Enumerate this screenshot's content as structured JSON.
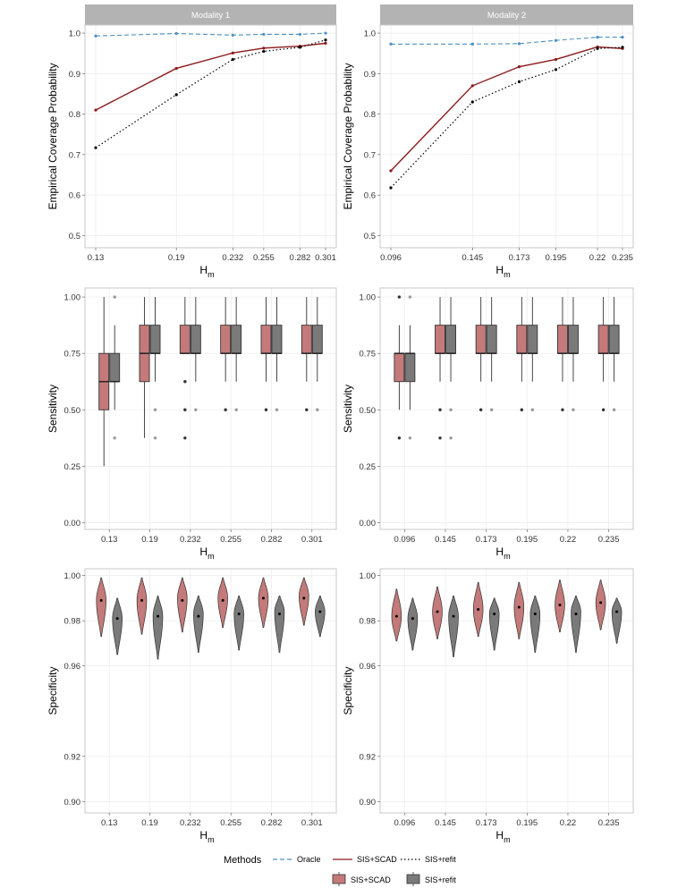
{
  "legend": {
    "title": "Methods",
    "line_items": [
      {
        "label": "Oracle",
        "style": "dashed",
        "color": "#4a90c2"
      },
      {
        "label": "SIS+SCAD",
        "style": "solid",
        "color": "#8b1a1a"
      },
      {
        "label": "SIS+refit",
        "style": "dotted",
        "color": "#000000"
      }
    ],
    "fill_items": [
      {
        "label": "SIS+SCAD",
        "color": "#c47a7a"
      },
      {
        "label": "SIS+refit",
        "color": "#7a7a7a"
      }
    ]
  },
  "colors": {
    "oracle": "#4a90c2",
    "scad_line": "#8b1a1a",
    "refit_line": "#000000",
    "scad_fill": "#c47a7a",
    "refit_fill": "#7a7a7a",
    "strip": "#b3b3b3",
    "panel_border": "#c8c8c8",
    "grid": "#e8e8e8"
  },
  "chart_data": [
    {
      "type": "line",
      "id": "coverage-m1",
      "facet": "Modality 1",
      "xlabel": "H",
      "xlabel_sub": "m",
      "ylabel": "Empirical Coverage Probability",
      "x": [
        0.13,
        0.19,
        0.232,
        0.255,
        0.282,
        0.301
      ],
      "x_tick_labels": [
        "0.13",
        "0.19",
        "0.232",
        "0.255",
        "0.282",
        "0.301"
      ],
      "ylim": [
        0.47,
        1.02
      ],
      "yticks": [
        0.5,
        0.6,
        0.7,
        0.8,
        0.9,
        1.0
      ],
      "ytick_labels": [
        "0.5",
        "0.6",
        "0.7",
        "0.8",
        "0.9",
        "1.0"
      ],
      "series": [
        {
          "name": "Oracle",
          "values": [
            0.993,
            0.999,
            0.995,
            0.997,
            0.997,
            1.0
          ]
        },
        {
          "name": "SIS+SCAD",
          "values": [
            0.81,
            0.913,
            0.951,
            0.963,
            0.968,
            0.975
          ]
        },
        {
          "name": "SIS+refit",
          "values": [
            0.717,
            0.848,
            0.935,
            0.955,
            0.965,
            0.983
          ]
        }
      ]
    },
    {
      "type": "line",
      "id": "coverage-m2",
      "facet": "Modality 2",
      "xlabel": "H",
      "xlabel_sub": "m",
      "ylabel": "Empirical Coverage Probability",
      "x": [
        0.096,
        0.145,
        0.173,
        0.195,
        0.22,
        0.235
      ],
      "x_tick_labels": [
        "0.096",
        "0.145",
        "0.173",
        "0.195",
        "0.22",
        "0.235"
      ],
      "ylim": [
        0.47,
        1.02
      ],
      "yticks": [
        0.5,
        0.6,
        0.7,
        0.8,
        0.9,
        1.0
      ],
      "ytick_labels": [
        "0.5",
        "0.6",
        "0.7",
        "0.8",
        "0.9",
        "1.0"
      ],
      "series": [
        {
          "name": "Oracle",
          "values": [
            0.973,
            0.973,
            0.974,
            0.982,
            0.99,
            0.99
          ]
        },
        {
          "name": "SIS+SCAD",
          "values": [
            0.66,
            0.87,
            0.917,
            0.935,
            0.966,
            0.962
          ]
        },
        {
          "name": "SIS+refit",
          "values": [
            0.618,
            0.83,
            0.88,
            0.91,
            0.962,
            0.965
          ]
        }
      ]
    },
    {
      "type": "boxplot",
      "id": "sensitivity-m1",
      "xlabel": "H",
      "xlabel_sub": "m",
      "ylabel": "Sensitivity",
      "categories": [
        "0.13",
        "0.19",
        "0.232",
        "0.255",
        "0.282",
        "0.301"
      ],
      "ylim": [
        -0.03,
        1.04
      ],
      "yticks": [
        0,
        0.25,
        0.5,
        0.75,
        1.0
      ],
      "ytick_labels": [
        "0.00",
        "0.25",
        "0.50",
        "0.75",
        "1.00"
      ],
      "series": [
        {
          "name": "SIS+SCAD",
          "boxes": [
            {
              "q1": 0.5,
              "med": 0.625,
              "q3": 0.75,
              "lo": 0.25,
              "hi": 1.0,
              "outliers": []
            },
            {
              "q1": 0.625,
              "med": 0.75,
              "q3": 0.875,
              "lo": 0.375,
              "hi": 1.0,
              "outliers": []
            },
            {
              "q1": 0.75,
              "med": 0.75,
              "q3": 0.875,
              "lo": 0.75,
              "hi": 1.0,
              "outliers": [
                0.625,
                0.5,
                0.375
              ]
            },
            {
              "q1": 0.75,
              "med": 0.75,
              "q3": 0.875,
              "lo": 0.625,
              "hi": 1.0,
              "outliers": [
                0.5
              ]
            },
            {
              "q1": 0.75,
              "med": 0.75,
              "q3": 0.875,
              "lo": 0.625,
              "hi": 1.0,
              "outliers": [
                0.5
              ]
            },
            {
              "q1": 0.75,
              "med": 0.75,
              "q3": 0.875,
              "lo": 0.625,
              "hi": 1.0,
              "outliers": [
                0.5
              ]
            }
          ]
        },
        {
          "name": "SIS+refit",
          "boxes": [
            {
              "q1": 0.625,
              "med": 0.625,
              "q3": 0.75,
              "lo": 0.5,
              "hi": 0.875,
              "outliers": [
                1.0,
                0.375
              ]
            },
            {
              "q1": 0.75,
              "med": 0.75,
              "q3": 0.875,
              "lo": 0.625,
              "hi": 1.0,
              "outliers": [
                0.5,
                0.375
              ]
            },
            {
              "q1": 0.75,
              "med": 0.75,
              "q3": 0.875,
              "lo": 0.625,
              "hi": 1.0,
              "outliers": [
                0.5
              ]
            },
            {
              "q1": 0.75,
              "med": 0.75,
              "q3": 0.875,
              "lo": 0.625,
              "hi": 1.0,
              "outliers": [
                0.5
              ]
            },
            {
              "q1": 0.75,
              "med": 0.75,
              "q3": 0.875,
              "lo": 0.625,
              "hi": 1.0,
              "outliers": [
                0.5
              ]
            },
            {
              "q1": 0.75,
              "med": 0.75,
              "q3": 0.875,
              "lo": 0.625,
              "hi": 1.0,
              "outliers": [
                0.5
              ]
            }
          ]
        }
      ]
    },
    {
      "type": "boxplot",
      "id": "sensitivity-m2",
      "xlabel": "H",
      "xlabel_sub": "m",
      "ylabel": "Sensitivity",
      "categories": [
        "0.096",
        "0.145",
        "0.173",
        "0.195",
        "0.22",
        "0.235"
      ],
      "ylim": [
        -0.03,
        1.04
      ],
      "yticks": [
        0,
        0.25,
        0.5,
        0.75,
        1.0
      ],
      "ytick_labels": [
        "0.00",
        "0.25",
        "0.50",
        "0.75",
        "1.00"
      ],
      "series": [
        {
          "name": "SIS+SCAD",
          "boxes": [
            {
              "q1": 0.625,
              "med": 0.75,
              "q3": 0.75,
              "lo": 0.5,
              "hi": 0.875,
              "outliers": [
                1.0,
                0.375
              ]
            },
            {
              "q1": 0.75,
              "med": 0.75,
              "q3": 0.875,
              "lo": 0.625,
              "hi": 1.0,
              "outliers": [
                0.5,
                0.375
              ]
            },
            {
              "q1": 0.75,
              "med": 0.75,
              "q3": 0.875,
              "lo": 0.625,
              "hi": 1.0,
              "outliers": [
                0.5
              ]
            },
            {
              "q1": 0.75,
              "med": 0.75,
              "q3": 0.875,
              "lo": 0.625,
              "hi": 1.0,
              "outliers": [
                0.5
              ]
            },
            {
              "q1": 0.75,
              "med": 0.75,
              "q3": 0.875,
              "lo": 0.625,
              "hi": 1.0,
              "outliers": [
                0.5
              ]
            },
            {
              "q1": 0.75,
              "med": 0.75,
              "q3": 0.875,
              "lo": 0.625,
              "hi": 1.0,
              "outliers": [
                0.5
              ]
            }
          ]
        },
        {
          "name": "SIS+refit",
          "boxes": [
            {
              "q1": 0.625,
              "med": 0.75,
              "q3": 0.75,
              "lo": 0.5,
              "hi": 0.875,
              "outliers": [
                1.0,
                0.375
              ]
            },
            {
              "q1": 0.75,
              "med": 0.75,
              "q3": 0.875,
              "lo": 0.625,
              "hi": 1.0,
              "outliers": [
                0.5,
                0.375
              ]
            },
            {
              "q1": 0.75,
              "med": 0.75,
              "q3": 0.875,
              "lo": 0.625,
              "hi": 1.0,
              "outliers": [
                0.5
              ]
            },
            {
              "q1": 0.75,
              "med": 0.75,
              "q3": 0.875,
              "lo": 0.625,
              "hi": 1.0,
              "outliers": [
                0.5
              ]
            },
            {
              "q1": 0.75,
              "med": 0.75,
              "q3": 0.875,
              "lo": 0.625,
              "hi": 1.0,
              "outliers": [
                0.5
              ]
            },
            {
              "q1": 0.75,
              "med": 0.75,
              "q3": 0.875,
              "lo": 0.625,
              "hi": 1.0,
              "outliers": [
                0.5
              ]
            }
          ]
        }
      ]
    },
    {
      "type": "violin",
      "id": "specificity-m1",
      "xlabel": "H",
      "xlabel_sub": "m",
      "ylabel": "Specificity",
      "categories": [
        "0.13",
        "0.19",
        "0.232",
        "0.255",
        "0.282",
        "0.301"
      ],
      "ylim": [
        0.895,
        1.003
      ],
      "yticks": [
        0.9,
        0.92,
        0.96,
        0.98,
        1.0
      ],
      "ytick_labels": [
        "0.90",
        "0.92",
        "0.96",
        "0.98",
        "1.00"
      ],
      "series": [
        {
          "name": "SIS+SCAD",
          "violins": [
            {
              "min": 0.973,
              "max": 0.999,
              "mode": 0.989,
              "mean": 0.989
            },
            {
              "min": 0.974,
              "max": 0.999,
              "mode": 0.989,
              "mean": 0.989
            },
            {
              "min": 0.975,
              "max": 0.999,
              "mode": 0.99,
              "mean": 0.989
            },
            {
              "min": 0.977,
              "max": 0.999,
              "mode": 0.99,
              "mean": 0.989
            },
            {
              "min": 0.977,
              "max": 0.999,
              "mode": 0.99,
              "mean": 0.99
            },
            {
              "min": 0.978,
              "max": 0.999,
              "mode": 0.991,
              "mean": 0.99
            }
          ]
        },
        {
          "name": "SIS+refit",
          "violins": [
            {
              "min": 0.965,
              "max": 0.99,
              "mode": 0.981,
              "mean": 0.981
            },
            {
              "min": 0.963,
              "max": 0.991,
              "mode": 0.982,
              "mean": 0.982
            },
            {
              "min": 0.966,
              "max": 0.991,
              "mode": 0.983,
              "mean": 0.982
            },
            {
              "min": 0.967,
              "max": 0.991,
              "mode": 0.983,
              "mean": 0.983
            },
            {
              "min": 0.966,
              "max": 0.991,
              "mode": 0.984,
              "mean": 0.983
            },
            {
              "min": 0.973,
              "max": 0.991,
              "mode": 0.984,
              "mean": 0.984
            }
          ]
        }
      ]
    },
    {
      "type": "violin",
      "id": "specificity-m2",
      "xlabel": "H",
      "xlabel_sub": "m",
      "ylabel": "Specificity",
      "categories": [
        "0.096",
        "0.145",
        "0.173",
        "0.195",
        "0.22",
        "0.235"
      ],
      "ylim": [
        0.895,
        1.003
      ],
      "yticks": [
        0.9,
        0.92,
        0.96,
        0.98,
        1.0
      ],
      "ytick_labels": [
        "0.90",
        "0.92",
        "0.96",
        "0.98",
        "1.00"
      ],
      "series": [
        {
          "name": "SIS+SCAD",
          "violins": [
            {
              "min": 0.971,
              "max": 0.994,
              "mode": 0.982,
              "mean": 0.982
            },
            {
              "min": 0.972,
              "max": 0.995,
              "mode": 0.984,
              "mean": 0.984
            },
            {
              "min": 0.973,
              "max": 0.997,
              "mode": 0.985,
              "mean": 0.985
            },
            {
              "min": 0.972,
              "max": 0.997,
              "mode": 0.986,
              "mean": 0.986
            },
            {
              "min": 0.975,
              "max": 0.998,
              "mode": 0.987,
              "mean": 0.987
            },
            {
              "min": 0.976,
              "max": 0.998,
              "mode": 0.988,
              "mean": 0.988
            }
          ]
        },
        {
          "name": "SIS+refit",
          "violins": [
            {
              "min": 0.967,
              "max": 0.99,
              "mode": 0.981,
              "mean": 0.981
            },
            {
              "min": 0.964,
              "max": 0.991,
              "mode": 0.982,
              "mean": 0.982
            },
            {
              "min": 0.967,
              "max": 0.99,
              "mode": 0.983,
              "mean": 0.983
            },
            {
              "min": 0.966,
              "max": 0.991,
              "mode": 0.983,
              "mean": 0.983
            },
            {
              "min": 0.966,
              "max": 0.991,
              "mode": 0.984,
              "mean": 0.983
            },
            {
              "min": 0.97,
              "max": 0.99,
              "mode": 0.984,
              "mean": 0.984
            }
          ]
        }
      ]
    }
  ]
}
